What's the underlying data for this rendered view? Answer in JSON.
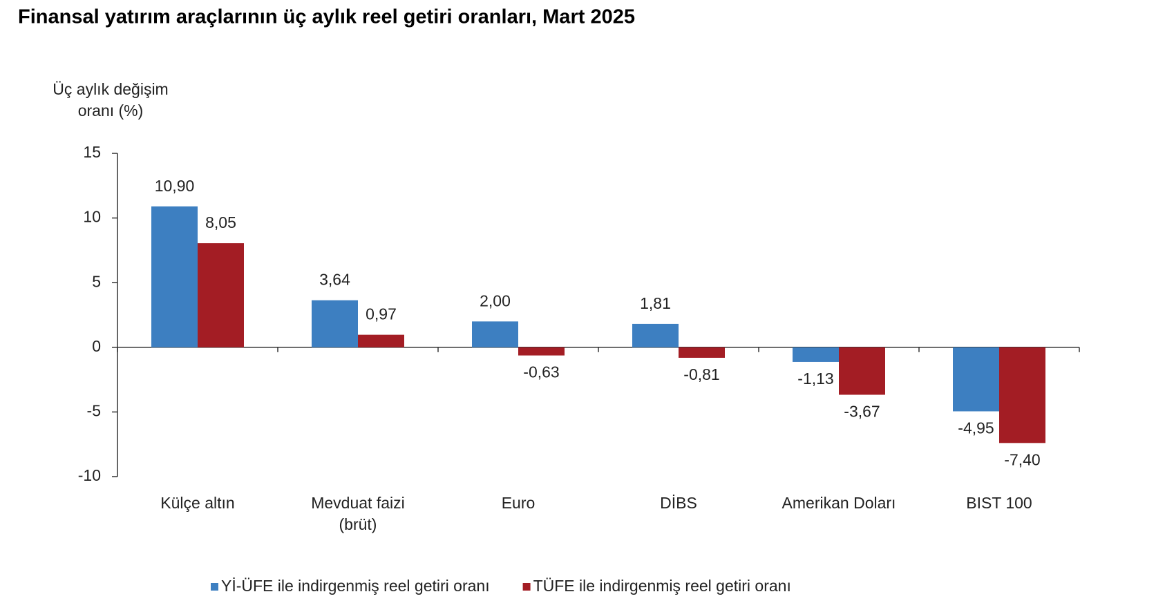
{
  "chart_data": {
    "type": "bar",
    "title": "Finansal yatırım araçlarının üç aylık reel getiri oranları, Mart 2025",
    "y_label": "Üç aylık değişim\noranı (%)",
    "categories": [
      "Külçe altın",
      "Mevduat faizi\n(brüt)",
      "Euro",
      "DİBS",
      "Amerikan Doları",
      "BIST 100"
    ],
    "series": [
      {
        "name": "Yİ-ÜFE ile indirgenmiş reel getiri oranı",
        "color": "#3d7fc1",
        "values": [
          10.9,
          3.64,
          2.0,
          1.81,
          -1.13,
          -4.95
        ],
        "value_labels": [
          "10,90",
          "3,64",
          "2,00",
          "1,81",
          "-1,13",
          "-4,95"
        ]
      },
      {
        "name": "TÜFE ile indirgenmiş reel getiri oranı",
        "color": "#a31d24",
        "values": [
          8.05,
          0.97,
          -0.63,
          -0.81,
          -3.67,
          -7.4
        ],
        "value_labels": [
          "8,05",
          "0,97",
          "-0,63",
          "-0,81",
          "-3,67",
          "-7,40"
        ]
      }
    ],
    "ylim": [
      -10,
      15
    ],
    "yticks": [
      -10,
      -5,
      0,
      5,
      10,
      15
    ],
    "legend": "bottom"
  }
}
